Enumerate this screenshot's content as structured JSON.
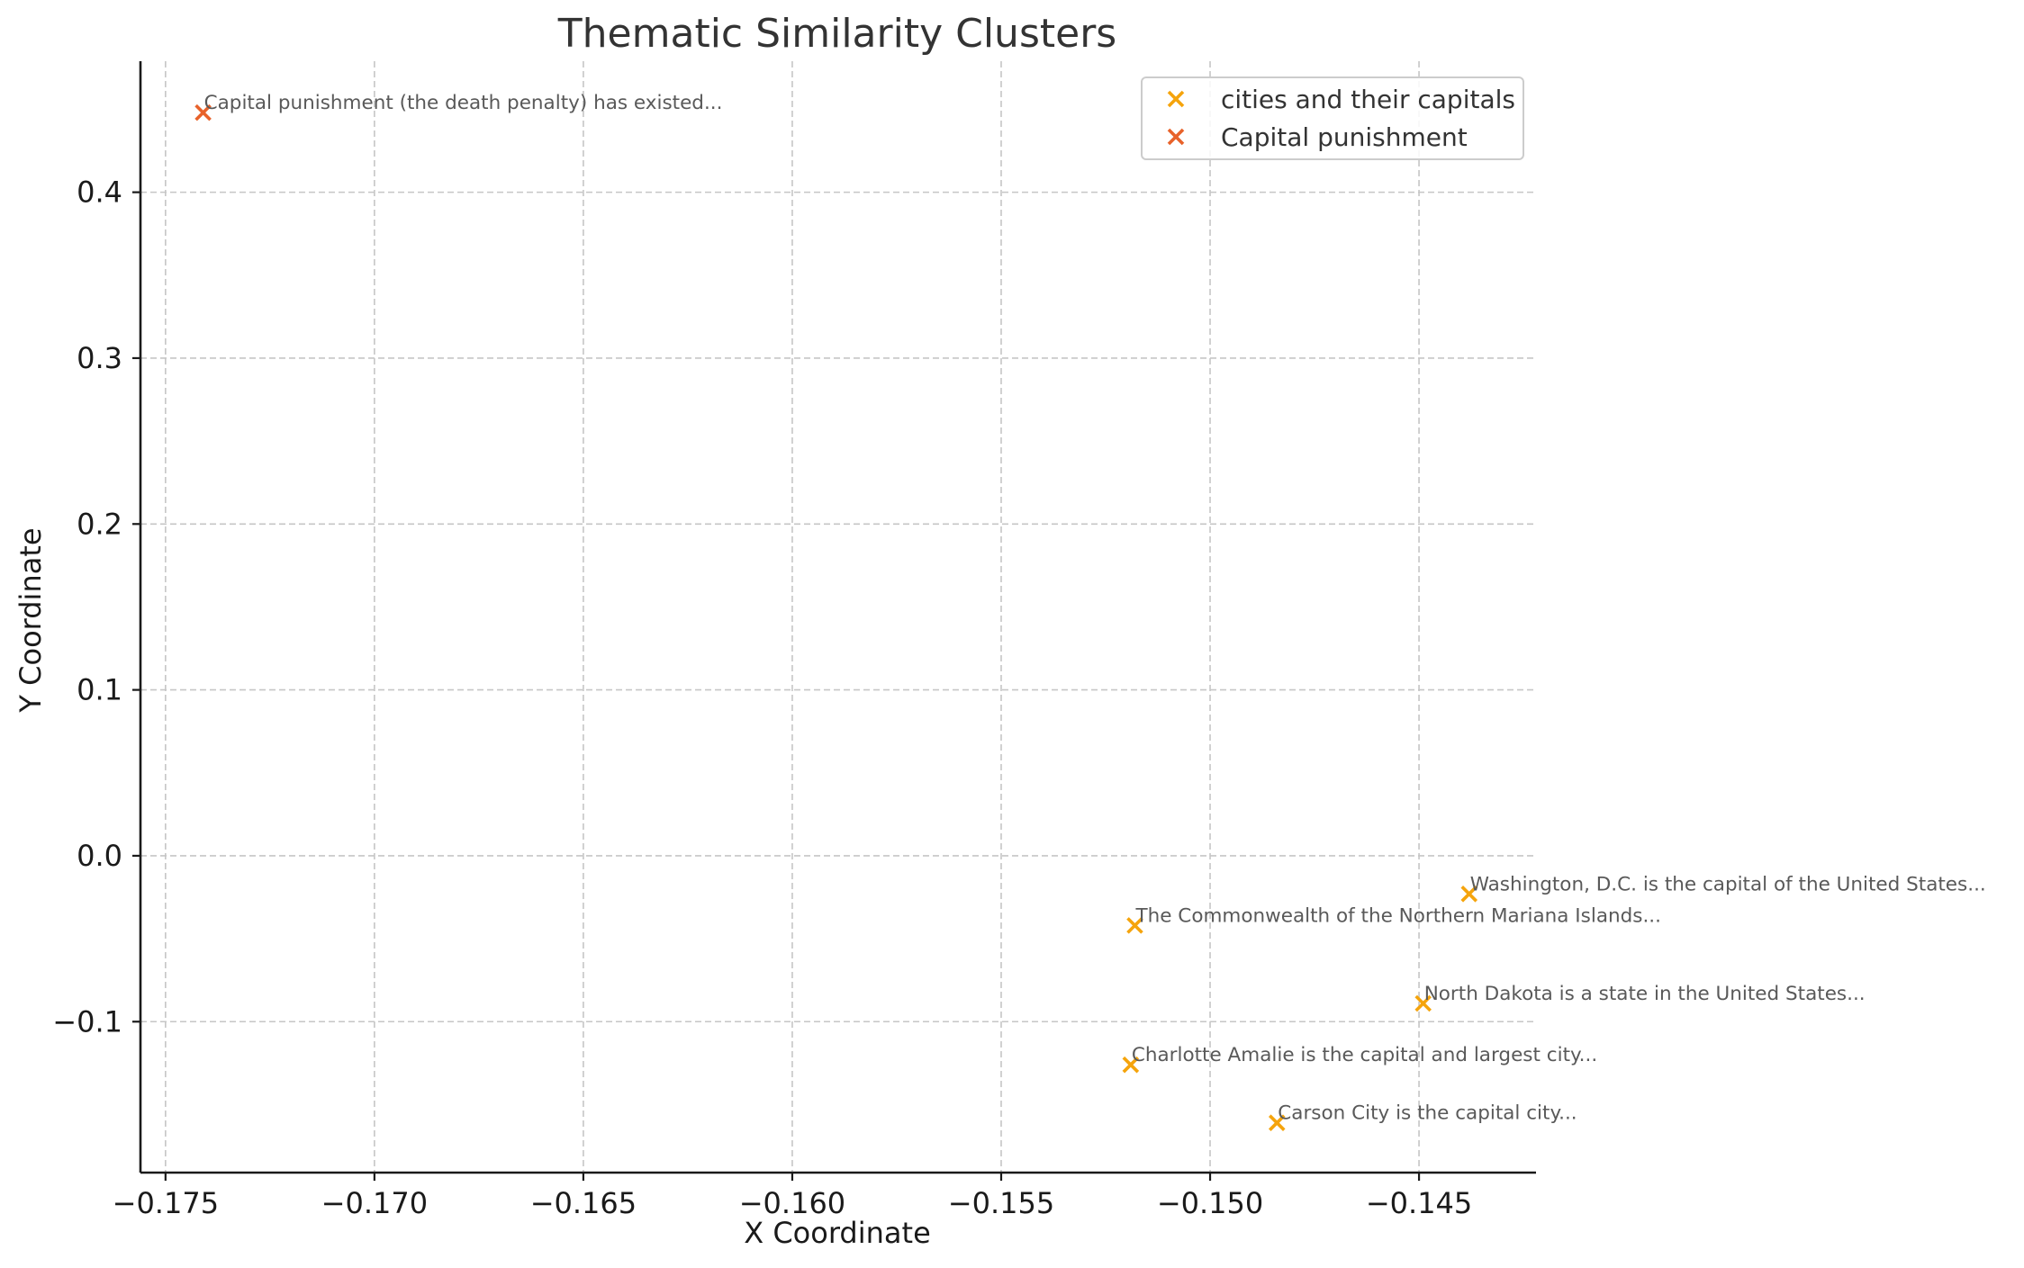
{
  "chart_data": {
    "type": "scatter",
    "title": "Thematic Similarity Clusters",
    "xlabel": "X Coordinate",
    "ylabel": "Y Coordinate",
    "xlim": [
      -0.1756,
      -0.1422
    ],
    "ylim": [
      -0.191,
      0.479
    ],
    "xticks": [
      -0.175,
      -0.17,
      -0.165,
      -0.16,
      -0.155,
      -0.15,
      -0.145
    ],
    "xtick_labels": [
      "−0.175",
      "−0.170",
      "−0.165",
      "−0.160",
      "−0.155",
      "−0.150",
      "−0.145"
    ],
    "yticks": [
      -0.1,
      0.0,
      0.1,
      0.2,
      0.3,
      0.4
    ],
    "ytick_labels": [
      "−0.1",
      "0.0",
      "0.1",
      "0.2",
      "0.3",
      "0.4"
    ],
    "grid": true,
    "legend_position": "top-right",
    "marker": "x",
    "series": [
      {
        "name": "cities and their capitals",
        "color": "#f5a40c",
        "points": [
          {
            "x": -0.1438,
            "y": -0.023,
            "label": "Washington, D.C. is the capital of the United States..."
          },
          {
            "x": -0.1518,
            "y": -0.042,
            "label": "The Commonwealth of the Northern Mariana Islands..."
          },
          {
            "x": -0.1449,
            "y": -0.089,
            "label": "North Dakota is a state in the United States..."
          },
          {
            "x": -0.1519,
            "y": -0.126,
            "label": "Charlotte Amalie is the capital and largest city..."
          },
          {
            "x": -0.1484,
            "y": -0.161,
            "label": "Carson City is the capital city..."
          }
        ]
      },
      {
        "name": "Capital punishment",
        "color": "#e8622a",
        "points": [
          {
            "x": -0.1741,
            "y": 0.448,
            "label": "Capital punishment (the death penalty) has existed..."
          }
        ]
      }
    ]
  }
}
